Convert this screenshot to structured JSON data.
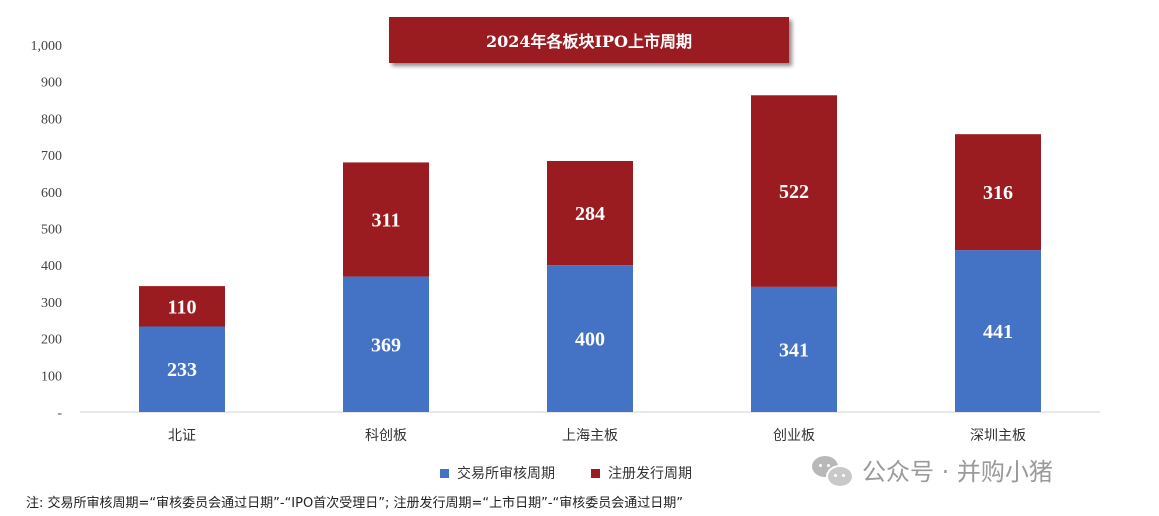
{
  "chart_data": {
    "type": "bar",
    "stacked": true,
    "title": "2024年各板块IPO上市周期",
    "categories": [
      "北证",
      "科创板",
      "上海主板",
      "创业板",
      "深圳主板"
    ],
    "series": [
      {
        "name": "交易所审核周期",
        "values": [
          233,
          369,
          400,
          341,
          441
        ],
        "color": "#4472c4"
      },
      {
        "name": "注册发行周期",
        "values": [
          110,
          311,
          284,
          522,
          316
        ],
        "color": "#9b1c20"
      }
    ],
    "ylim": [
      0,
      1000
    ],
    "yticks": [
      {
        "value": 0,
        "label": "-"
      },
      {
        "value": 100,
        "label": "100"
      },
      {
        "value": 200,
        "label": "200"
      },
      {
        "value": 300,
        "label": "300"
      },
      {
        "value": 400,
        "label": "400"
      },
      {
        "value": 500,
        "label": "500"
      },
      {
        "value": 600,
        "label": "600"
      },
      {
        "value": 700,
        "label": "700"
      },
      {
        "value": 800,
        "label": "800"
      },
      {
        "value": 900,
        "label": "900"
      },
      {
        "value": 1000,
        "label": "1,000"
      }
    ],
    "grid": false,
    "legend": "bottom"
  },
  "note": "注: 交易所审核周期=“审核委员会通过日期”-“IPO首次受理日”; 注册发行周期=“上市日期”-“审核委员会通过日期”",
  "watermark": {
    "text": "公众号 · 并购小猪",
    "icon": "wechat-icon"
  }
}
